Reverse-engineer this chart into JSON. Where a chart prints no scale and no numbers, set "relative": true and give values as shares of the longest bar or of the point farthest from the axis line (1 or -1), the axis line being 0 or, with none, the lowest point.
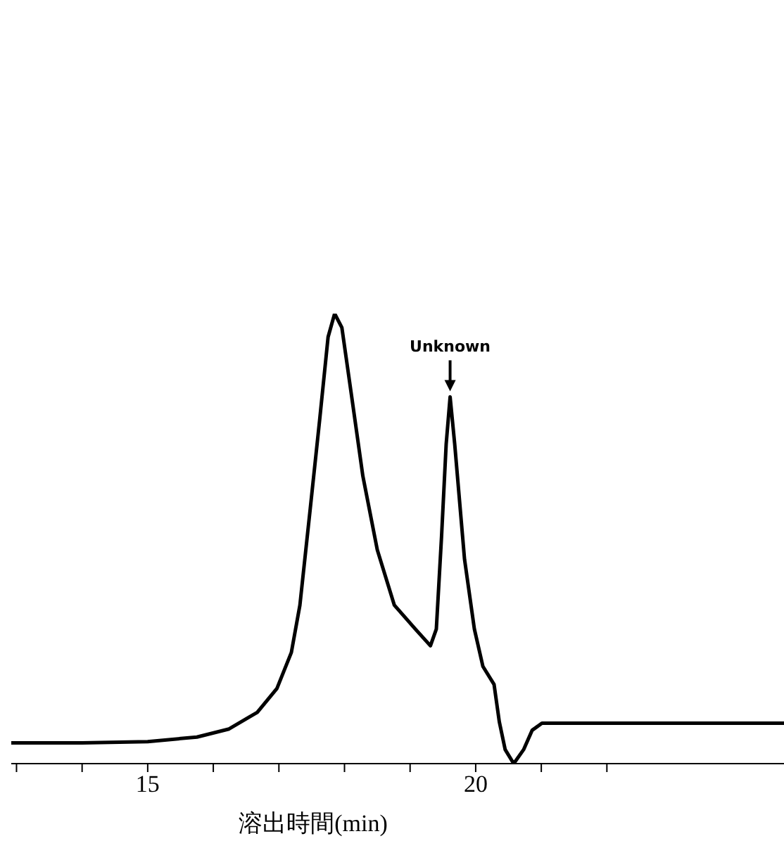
{
  "chart_data": {
    "type": "line",
    "relative": true,
    "xlabel": "溶出時間(min)",
    "color": "#000000",
    "marker": "none",
    "line_style": "solid",
    "grid": false,
    "legend": false,
    "x": [
      12.92,
      14.0,
      15.0,
      15.75,
      16.24,
      16.67,
      16.97,
      17.19,
      17.32,
      17.47,
      17.62,
      17.75,
      17.85,
      17.96,
      18.11,
      18.28,
      18.5,
      18.76,
      19.08,
      19.31,
      19.4,
      19.48,
      19.55,
      19.61,
      19.68,
      19.83,
      19.98,
      20.11,
      20.28,
      20.36,
      20.45,
      20.58,
      20.73,
      20.86,
      21.01,
      22.4,
      24.7
    ],
    "values": [
      0.046,
      0.046,
      0.049,
      0.059,
      0.077,
      0.114,
      0.167,
      0.247,
      0.352,
      0.556,
      0.762,
      0.948,
      1,
      0.969,
      0.815,
      0.639,
      0.475,
      0.352,
      0.299,
      0.262,
      0.299,
      0.506,
      0.71,
      0.815,
      0.71,
      0.454,
      0.299,
      0.216,
      0.176,
      0.093,
      0.031,
      0,
      0.031,
      0.074,
      0.09,
      0.09,
      0.09
    ],
    "xlim": [
      12.92,
      24.7
    ],
    "xticks": [
      {
        "value": 13,
        "label": null
      },
      {
        "value": 14,
        "label": null
      },
      15,
      {
        "value": 16,
        "label": null
      },
      {
        "value": 17,
        "label": null
      },
      {
        "value": 18,
        "label": null
      },
      {
        "value": 19,
        "label": null
      },
      20,
      {
        "value": 21,
        "label": null
      },
      {
        "value": 22,
        "label": null
      }
    ],
    "annotations": [
      {
        "text": "Unknown",
        "x": 19.61,
        "y": 0.815
      }
    ]
  }
}
